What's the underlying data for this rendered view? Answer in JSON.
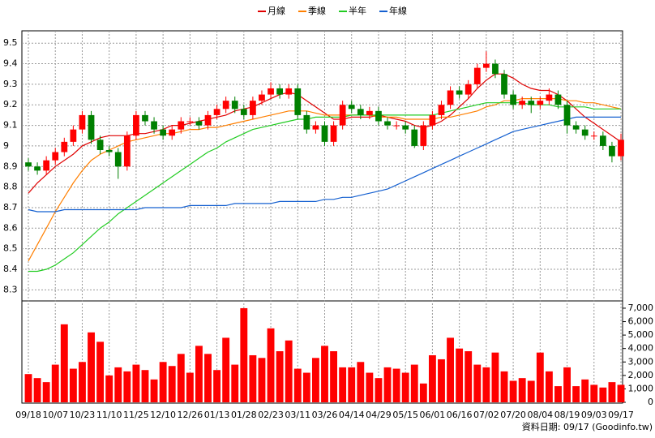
{
  "chart_data": {
    "type": "candlestick",
    "categories": [
      "09/18",
      null,
      null,
      "10/07",
      null,
      null,
      "10/23",
      null,
      null,
      "11/10",
      null,
      null,
      "11/25",
      null,
      null,
      "12/10",
      null,
      null,
      "12/26",
      null,
      null,
      "01/13",
      null,
      null,
      "01/28",
      null,
      null,
      "02/23",
      null,
      null,
      "03/11",
      null,
      null,
      "03/26",
      null,
      null,
      "04/14",
      null,
      null,
      "04/29",
      null,
      null,
      "05/15",
      null,
      null,
      "06/01",
      null,
      null,
      "06/16",
      null,
      null,
      "07/02",
      null,
      null,
      "07/20",
      null,
      null,
      "08/04",
      null,
      null,
      "08/19",
      null,
      null,
      "09/03",
      null,
      null,
      "09/17"
    ],
    "open": [
      8.92,
      8.9,
      8.88,
      8.93,
      8.97,
      9.02,
      9.08,
      9.15,
      9.03,
      8.98,
      8.97,
      8.9,
      9.05,
      9.15,
      9.12,
      9.08,
      9.05,
      9.08,
      9.12,
      9.12,
      9.1,
      9.15,
      9.18,
      9.22,
      9.18,
      9.15,
      9.22,
      9.25,
      9.28,
      9.25,
      9.28,
      9.15,
      9.08,
      9.1,
      9.02,
      9.1,
      9.2,
      9.18,
      9.15,
      9.17,
      9.12,
      9.1,
      9.1,
      9.08,
      9.0,
      9.1,
      9.15,
      9.2,
      9.27,
      9.25,
      9.3,
      9.38,
      9.4,
      9.35,
      9.25,
      9.2,
      9.22,
      9.2,
      9.22,
      9.25,
      9.2,
      9.1,
      9.08,
      9.05,
      9.05,
      9.0,
      8.95
    ],
    "high": [
      8.94,
      8.92,
      8.95,
      8.99,
      9.04,
      9.1,
      9.17,
      9.17,
      9.05,
      9.0,
      8.99,
      9.07,
      9.17,
      9.17,
      9.14,
      9.1,
      9.1,
      9.14,
      9.14,
      9.14,
      9.17,
      9.2,
      9.24,
      9.24,
      9.2,
      9.24,
      9.27,
      9.31,
      9.3,
      9.3,
      9.3,
      9.17,
      9.12,
      9.12,
      9.12,
      9.22,
      9.22,
      9.2,
      9.19,
      9.19,
      9.14,
      9.12,
      9.12,
      9.1,
      9.12,
      9.17,
      9.22,
      9.29,
      9.29,
      9.32,
      9.4,
      9.46,
      9.42,
      9.37,
      9.27,
      9.24,
      9.24,
      9.24,
      9.28,
      9.27,
      9.22,
      9.12,
      9.1,
      9.07,
      9.07,
      9.02,
      9.06
    ],
    "low": [
      8.88,
      8.86,
      8.86,
      8.91,
      8.95,
      9.0,
      9.06,
      9.01,
      8.96,
      8.95,
      8.84,
      8.88,
      9.03,
      9.1,
      9.06,
      9.03,
      9.03,
      9.06,
      9.1,
      9.08,
      9.08,
      9.13,
      9.16,
      9.16,
      9.13,
      9.13,
      9.2,
      9.23,
      9.23,
      9.23,
      9.13,
      9.06,
      9.06,
      9.0,
      9.0,
      9.08,
      9.16,
      9.13,
      9.13,
      9.1,
      9.08,
      9.08,
      9.06,
      8.99,
      8.98,
      9.08,
      9.13,
      9.18,
      9.23,
      9.23,
      9.28,
      9.36,
      9.33,
      9.23,
      9.18,
      9.18,
      9.16,
      9.18,
      9.2,
      9.18,
      9.06,
      9.06,
      9.03,
      9.03,
      8.98,
      8.92,
      8.93
    ],
    "close": [
      8.9,
      8.88,
      8.93,
      8.97,
      9.02,
      9.08,
      9.15,
      9.03,
      8.98,
      8.97,
      8.9,
      9.05,
      9.15,
      9.12,
      9.08,
      9.05,
      9.08,
      9.12,
      9.12,
      9.1,
      9.15,
      9.18,
      9.22,
      9.18,
      9.15,
      9.22,
      9.25,
      9.28,
      9.25,
      9.28,
      9.15,
      9.08,
      9.1,
      9.02,
      9.1,
      9.2,
      9.18,
      9.15,
      9.17,
      9.12,
      9.1,
      9.1,
      9.08,
      9.0,
      9.1,
      9.15,
      9.2,
      9.27,
      9.25,
      9.3,
      9.38,
      9.4,
      9.35,
      9.25,
      9.2,
      9.22,
      9.2,
      9.22,
      9.25,
      9.2,
      9.1,
      9.08,
      9.05,
      9.05,
      9.0,
      8.95,
      9.03
    ],
    "up_color": "#ff0000",
    "down_color": "#008000",
    "volume": {
      "color": "#ff0000",
      "axis": "y2",
      "values": [
        2100,
        1800,
        1500,
        2800,
        5800,
        2500,
        3000,
        5200,
        4500,
        2000,
        2600,
        2300,
        2800,
        2400,
        1700,
        3000,
        2700,
        3600,
        2200,
        4200,
        3600,
        2400,
        4800,
        2800,
        7000,
        3500,
        3300,
        5500,
        3800,
        4600,
        2500,
        2200,
        3300,
        4200,
        3800,
        2600,
        2600,
        3000,
        2200,
        1800,
        2600,
        2500,
        2200,
        2800,
        1400,
        3500,
        3200,
        4800,
        4000,
        3800,
        2800,
        2600,
        3700,
        2300,
        1600,
        1800,
        1600,
        3700,
        2300,
        1200,
        2600,
        1200,
        1700,
        1300,
        1100,
        1500,
        1300
      ]
    },
    "series": [
      {
        "name": "月線",
        "color": "#e00000",
        "values": [
          8.77,
          8.82,
          8.86,
          8.9,
          8.93,
          8.96,
          9.0,
          9.02,
          9.04,
          9.05,
          9.05,
          9.05,
          9.06,
          9.06,
          9.07,
          9.08,
          9.1,
          9.1,
          9.11,
          9.12,
          9.13,
          9.14,
          9.15,
          9.17,
          9.18,
          9.19,
          9.21,
          9.23,
          9.25,
          9.26,
          9.25,
          9.22,
          9.19,
          9.16,
          9.13,
          9.13,
          9.14,
          9.14,
          9.14,
          9.15,
          9.14,
          9.13,
          9.12,
          9.1,
          9.09,
          9.1,
          9.12,
          9.15,
          9.19,
          9.23,
          9.28,
          9.32,
          9.35,
          9.35,
          9.33,
          9.3,
          9.28,
          9.27,
          9.27,
          9.25,
          9.22,
          9.18,
          9.14,
          9.11,
          9.08,
          9.05,
          9.02
        ]
      },
      {
        "name": "季線",
        "color": "#ff7f00",
        "values": [
          8.44,
          8.52,
          8.6,
          8.68,
          8.75,
          8.82,
          8.88,
          8.93,
          8.96,
          8.98,
          9.0,
          9.02,
          9.03,
          9.04,
          9.05,
          9.06,
          9.06,
          9.07,
          9.08,
          9.08,
          9.09,
          9.09,
          9.1,
          9.11,
          9.12,
          9.13,
          9.14,
          9.15,
          9.16,
          9.17,
          9.17,
          9.17,
          9.16,
          9.15,
          9.15,
          9.15,
          9.15,
          9.15,
          9.15,
          9.14,
          9.14,
          9.14,
          9.13,
          9.13,
          9.13,
          9.13,
          9.14,
          9.14,
          9.15,
          9.16,
          9.17,
          9.19,
          9.2,
          9.22,
          9.22,
          9.23,
          9.23,
          9.23,
          9.23,
          9.23,
          9.22,
          9.22,
          9.21,
          9.21,
          9.2,
          9.19,
          9.18
        ]
      },
      {
        "name": "半年",
        "color": "#22cc22",
        "values": [
          8.39,
          8.39,
          8.4,
          8.42,
          8.45,
          8.48,
          8.52,
          8.56,
          8.6,
          8.63,
          8.67,
          8.7,
          8.73,
          8.76,
          8.79,
          8.82,
          8.85,
          8.88,
          8.91,
          8.94,
          8.97,
          8.99,
          9.02,
          9.04,
          9.06,
          9.08,
          9.09,
          9.1,
          9.11,
          9.12,
          9.13,
          9.13,
          9.14,
          9.14,
          9.14,
          9.14,
          9.15,
          9.15,
          9.15,
          9.15,
          9.15,
          9.15,
          9.15,
          9.15,
          9.15,
          9.15,
          9.16,
          9.17,
          9.18,
          9.19,
          9.2,
          9.21,
          9.21,
          9.21,
          9.21,
          9.21,
          9.2,
          9.2,
          9.2,
          9.19,
          9.19,
          9.19,
          9.19,
          9.18,
          9.18,
          9.18,
          9.18
        ]
      },
      {
        "name": "年線",
        "color": "#1560d0",
        "values": [
          8.69,
          8.68,
          8.68,
          8.68,
          8.69,
          8.69,
          8.69,
          8.69,
          8.69,
          8.69,
          8.69,
          8.69,
          8.69,
          8.7,
          8.7,
          8.7,
          8.7,
          8.7,
          8.71,
          8.71,
          8.71,
          8.71,
          8.71,
          8.72,
          8.72,
          8.72,
          8.72,
          8.72,
          8.73,
          8.73,
          8.73,
          8.73,
          8.73,
          8.74,
          8.74,
          8.75,
          8.75,
          8.76,
          8.77,
          8.78,
          8.79,
          8.81,
          8.83,
          8.85,
          8.87,
          8.89,
          8.91,
          8.93,
          8.95,
          8.97,
          8.99,
          9.01,
          9.03,
          9.05,
          9.07,
          9.08,
          9.09,
          9.1,
          9.11,
          9.12,
          9.13,
          9.14,
          9.14,
          9.14,
          9.14,
          9.14,
          9.14
        ]
      }
    ],
    "ylim": [
      8.25,
      9.56
    ],
    "yticks": [
      8.3,
      8.4,
      8.5,
      8.6,
      8.7,
      8.8,
      8.9,
      9,
      9.1,
      9.2,
      9.3,
      9.4,
      9.5
    ],
    "y2lim": [
      0,
      7480
    ],
    "y2ticks": [
      0,
      {
        "value": 1000,
        "label": "1,000"
      },
      {
        "value": 2000,
        "label": "2,000"
      },
      {
        "value": 3000,
        "label": "3,000"
      },
      {
        "value": 4000,
        "label": "4,000"
      },
      {
        "value": 5000,
        "label": "5,000"
      },
      {
        "value": 6000,
        "label": "6,000"
      },
      {
        "value": 7000,
        "label": "7,000"
      }
    ],
    "grid": true,
    "legend": "top",
    "footer": "資料日期: 09/17 (Goodinfo.tw)"
  }
}
